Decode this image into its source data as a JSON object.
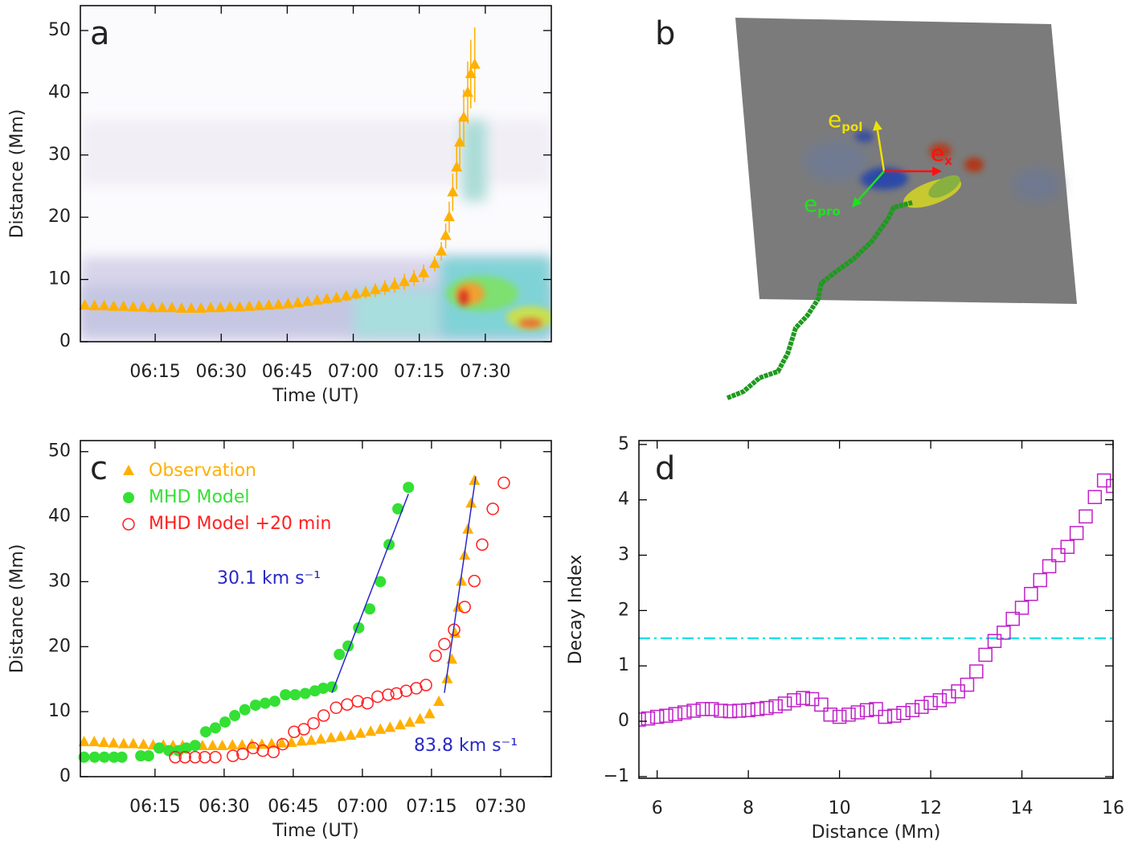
{
  "chart_data": [
    {
      "type": "scatter",
      "panel": "a",
      "xlabel": "Time (UT)",
      "ylabel": "Distance (Mm)",
      "xlim": [
        358,
        465
      ],
      "ylim": [
        0,
        54
      ],
      "xticks": [
        {
          "value": 375,
          "label": "06:15"
        },
        {
          "value": 390,
          "label": "06:30"
        },
        {
          "value": 405,
          "label": "06:45"
        },
        {
          "value": 420,
          "label": "07:00"
        },
        {
          "value": 435,
          "label": "07:15"
        },
        {
          "value": 450,
          "label": "07:30"
        }
      ],
      "yticks": [
        0,
        10,
        20,
        30,
        40,
        50
      ],
      "series": [
        {
          "color": "#ffb000",
          "marker": "triangle",
          "x": [
            359,
            361.2,
            363.4,
            365.6,
            367.8,
            370,
            372.2,
            374.4,
            376.6,
            378.8,
            381,
            383.2,
            385.4,
            387.6,
            389.8,
            392,
            394.2,
            396.4,
            398.6,
            400.8,
            403,
            405.2,
            407.4,
            409.6,
            411.8,
            414,
            416.2,
            418.4,
            420.6,
            422.8,
            425,
            427.2,
            429.4,
            431.6,
            433.8,
            436,
            438.5,
            440,
            441,
            441.8,
            442.6,
            443.5,
            444.2,
            445.1,
            446,
            446.7,
            447.6
          ],
          "values": [
            5.8,
            5.7,
            5.7,
            5.6,
            5.6,
            5.5,
            5.5,
            5.4,
            5.4,
            5.4,
            5.3,
            5.3,
            5.3,
            5.4,
            5.4,
            5.5,
            5.5,
            5.6,
            5.7,
            5.8,
            5.9,
            6.0,
            6.2,
            6.4,
            6.6,
            6.8,
            7.0,
            7.3,
            7.6,
            7.9,
            8.3,
            8.7,
            9.1,
            9.6,
            10.2,
            11.0,
            12.5,
            14.5,
            17,
            20,
            24,
            28,
            32,
            36,
            40,
            43,
            44.5
          ],
          "errors": [
            0.5,
            0.5,
            0.5,
            0.5,
            0.5,
            0.5,
            0.5,
            0.5,
            0.5,
            0.5,
            0.5,
            0.5,
            0.5,
            0.5,
            0.5,
            0.5,
            0.5,
            0.5,
            0.5,
            0.5,
            0.5,
            0.5,
            0.5,
            0.5,
            0.5,
            0.5,
            0.7,
            0.8,
            0.9,
            1.0,
            1.1,
            1.2,
            1.2,
            1.3,
            1.3,
            1.4,
            1.2,
            1.5,
            2,
            2.5,
            3,
            3.5,
            4,
            4.5,
            5,
            5.5,
            6
          ]
        }
      ]
    },
    {
      "type": "image",
      "panel": "b",
      "vectors": [
        {
          "symbol": "e",
          "subscript": "pol",
          "color": "#f0e000"
        },
        {
          "symbol": "e",
          "subscript": "x",
          "color": "#ff1010"
        },
        {
          "symbol": "e",
          "subscript": "pro",
          "color": "#20e020"
        }
      ]
    },
    {
      "type": "scatter",
      "panel": "c",
      "xlabel": "Time (UT)",
      "ylabel": "Distance (Mm)",
      "xlim": [
        358.8,
        461
      ],
      "ylim": [
        0,
        51.7
      ],
      "xticks": [
        {
          "value": 375,
          "label": "06:15"
        },
        {
          "value": 390,
          "label": "06:30"
        },
        {
          "value": 405,
          "label": "06:45"
        },
        {
          "value": 420,
          "label": "07:00"
        },
        {
          "value": 435,
          "label": "07:15"
        },
        {
          "value": 450,
          "label": "07:30"
        }
      ],
      "yticks": [
        0,
        10,
        20,
        30,
        40,
        50
      ],
      "series": [
        {
          "name": "Observation",
          "color": "#ffb000",
          "marker": "triangle",
          "x": [
            359.6,
            361.8,
            363.9,
            366,
            368.2,
            370.3,
            372.5,
            374.6,
            376.8,
            378.9,
            381,
            383.2,
            385.3,
            387.5,
            389.6,
            391.8,
            393.9,
            396,
            398.2,
            400.3,
            402.5,
            404.6,
            406.8,
            408.9,
            411,
            413.2,
            415.3,
            417.5,
            419.6,
            421.8,
            423.9,
            426,
            428.2,
            430.3,
            432.5,
            434.6,
            436.6,
            438.4,
            439.4,
            440.1,
            440.8,
            441.5,
            442.2,
            442.9,
            443.6,
            444.3
          ],
          "values": [
            5.3,
            5.3,
            5.2,
            5.1,
            5.0,
            5.0,
            4.9,
            4.8,
            4.8,
            4.7,
            4.7,
            4.7,
            4.7,
            4.7,
            4.7,
            4.8,
            4.8,
            4.9,
            4.9,
            5.0,
            5.1,
            5.2,
            5.4,
            5.5,
            5.7,
            5.9,
            6.1,
            6.3,
            6.6,
            6.9,
            7.2,
            7.5,
            7.9,
            8.3,
            8.8,
            9.6,
            11.5,
            15,
            18,
            22,
            26,
            30,
            34,
            38,
            42,
            45.5
          ]
        },
        {
          "name": "MHD Model",
          "color": "#33e033",
          "marker": "circle",
          "x": [
            359.6,
            361.9,
            364,
            366.1,
            367.8,
            371.9,
            373.6,
            375.9,
            378,
            380.1,
            381.8,
            383.7,
            386,
            388.1,
            390.2,
            392.3,
            394.5,
            396.8,
            398.9,
            401,
            403.3,
            405.4,
            407.6,
            409.7,
            411.5,
            413.4,
            415,
            416.9,
            419.2,
            421.6,
            423.9,
            425.8,
            427.7,
            430
          ],
          "values": [
            3,
            3,
            3,
            3,
            3,
            3.2,
            3.2,
            4.4,
            4.0,
            4.0,
            4.4,
            4.8,
            6.9,
            7.5,
            8.4,
            9.4,
            10.3,
            11,
            11.3,
            11.6,
            12.6,
            12.6,
            12.8,
            13.2,
            13.6,
            13.8,
            18.8,
            20.1,
            22.9,
            25.8,
            30,
            35.7,
            41.2,
            44.5
          ]
        },
        {
          "name": "MHD Model +20 min",
          "color": "#ff2020",
          "marker": "open-circle",
          "x": [
            379.4,
            381.5,
            383.7,
            385.8,
            388.1,
            391.9,
            394,
            396.3,
            398.4,
            400.7,
            402.7,
            405.2,
            407.3,
            409.4,
            411.6,
            414.3,
            416.7,
            419,
            421.1,
            423.3,
            425.6,
            427.4,
            429.5,
            431.7,
            433.8,
            435.9,
            437.8,
            439.9,
            442.2,
            444.3,
            446,
            448.3,
            450.7
          ],
          "values": [
            3,
            3,
            3,
            3,
            3,
            3.2,
            3.5,
            4.4,
            4.0,
            3.8,
            5.0,
            6.9,
            7.3,
            8.2,
            9.4,
            10.6,
            11.1,
            11.6,
            11.3,
            12.3,
            12.6,
            12.8,
            13.2,
            13.6,
            14.1,
            18.6,
            20.4,
            22.6,
            26.1,
            30.1,
            35.7,
            41.2,
            45.2
          ]
        }
      ],
      "fits": [
        {
          "label": "30.1 km s⁻¹",
          "color": "#2828c8",
          "x": [
            413.4,
            430
          ],
          "values": [
            12.9,
            43.5
          ]
        },
        {
          "label": "83.8 km s⁻¹",
          "color": "#2828c8",
          "x": [
            437.8,
            444.6
          ],
          "values": [
            12.9,
            46.2
          ]
        }
      ]
    },
    {
      "type": "scatter",
      "panel": "d",
      "xlabel": "Distance (Mm)",
      "ylabel": "Decay Index",
      "xlim": [
        5.6,
        16
      ],
      "ylim": [
        -1.03,
        5.07
      ],
      "xticks": [
        6,
        8,
        10,
        12,
        14,
        16
      ],
      "yticks": [
        {
          "value": -1,
          "label": "−1"
        },
        0,
        1,
        2,
        3,
        4,
        5
      ],
      "reference_line": 1.5,
      "reference_color": "#00e0e8",
      "series": [
        {
          "color": "#c020c8",
          "marker": "square",
          "x": [
            5.6,
            5.8,
            6.0,
            6.2,
            6.4,
            6.6,
            6.8,
            7.0,
            7.2,
            7.4,
            7.6,
            7.8,
            8.0,
            8.2,
            8.4,
            8.6,
            8.8,
            9.0,
            9.2,
            9.4,
            9.6,
            9.8,
            10.0,
            10.2,
            10.4,
            10.6,
            10.8,
            11.0,
            11.2,
            11.4,
            11.6,
            11.8,
            12.0,
            12.2,
            12.4,
            12.6,
            12.8,
            13.0,
            13.2,
            13.4,
            13.6,
            13.8,
            14.0,
            14.2,
            14.4,
            14.6,
            14.8,
            15.0,
            15.2,
            15.4,
            15.6,
            15.8,
            16.0
          ],
          "values": [
            0.03,
            0.05,
            0.08,
            0.1,
            0.13,
            0.16,
            0.19,
            0.22,
            0.22,
            0.19,
            0.18,
            0.19,
            0.2,
            0.22,
            0.24,
            0.27,
            0.32,
            0.38,
            0.42,
            0.4,
            0.3,
            0.12,
            0.08,
            0.12,
            0.16,
            0.2,
            0.22,
            0.08,
            0.1,
            0.15,
            0.2,
            0.26,
            0.33,
            0.38,
            0.45,
            0.54,
            0.66,
            0.9,
            1.2,
            1.45,
            1.6,
            1.85,
            2.05,
            2.3,
            2.55,
            2.8,
            3.0,
            3.15,
            3.4,
            3.7,
            4.05,
            4.35,
            4.25
          ]
        }
      ]
    }
  ]
}
